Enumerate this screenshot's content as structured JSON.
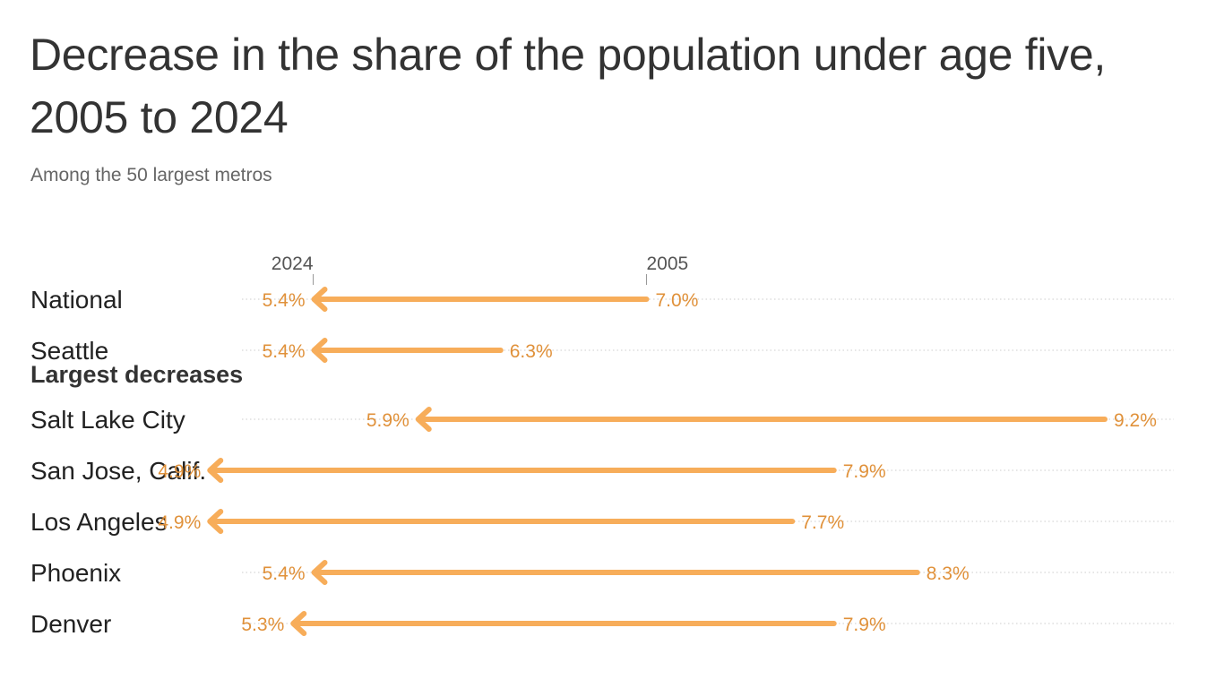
{
  "title": "Decrease in the share of the population under age five, 2005 to 2024",
  "subtitle": "Among the 50 largest metros",
  "colors": {
    "arrow": "#f7ad5a",
    "value_text": "#e0913a",
    "gridline": "#cccccc"
  },
  "chart_data": {
    "type": "dumbbell-arrow",
    "title": "Decrease in the share of the population under age five, 2005 to 2024",
    "subtitle": "Among the 50 largest metros",
    "unit": "%",
    "axis_labels": {
      "start": "2024",
      "end": "2005"
    },
    "groups": [
      {
        "label": "",
        "rows": [
          {
            "name": "National",
            "v2005": 7.0,
            "v2024": 5.4,
            "label2005": "7.0%",
            "label2024": "5.4%"
          },
          {
            "name": "Seattle",
            "v2005": 6.3,
            "v2024": 5.4,
            "label2005": "6.3%",
            "label2024": "5.4%"
          }
        ]
      },
      {
        "label": "Largest decreases",
        "rows": [
          {
            "name": "Salt Lake City",
            "v2005": 9.2,
            "v2024": 5.9,
            "label2005": "9.2%",
            "label2024": "5.9%"
          },
          {
            "name": "San Jose, Calif.",
            "v2005": 7.9,
            "v2024": 4.9,
            "label2005": "7.9%",
            "label2024": "4.9%"
          },
          {
            "name": "Los Angeles",
            "v2005": 7.7,
            "v2024": 4.9,
            "label2005": "7.7%",
            "label2024": "4.9%"
          },
          {
            "name": "Phoenix",
            "v2005": 8.3,
            "v2024": 5.4,
            "label2005": "8.3%",
            "label2024": "5.4%"
          },
          {
            "name": "Denver",
            "v2005": 7.9,
            "v2024": 5.3,
            "label2005": "7.9%",
            "label2024": "5.3%"
          }
        ]
      }
    ]
  }
}
